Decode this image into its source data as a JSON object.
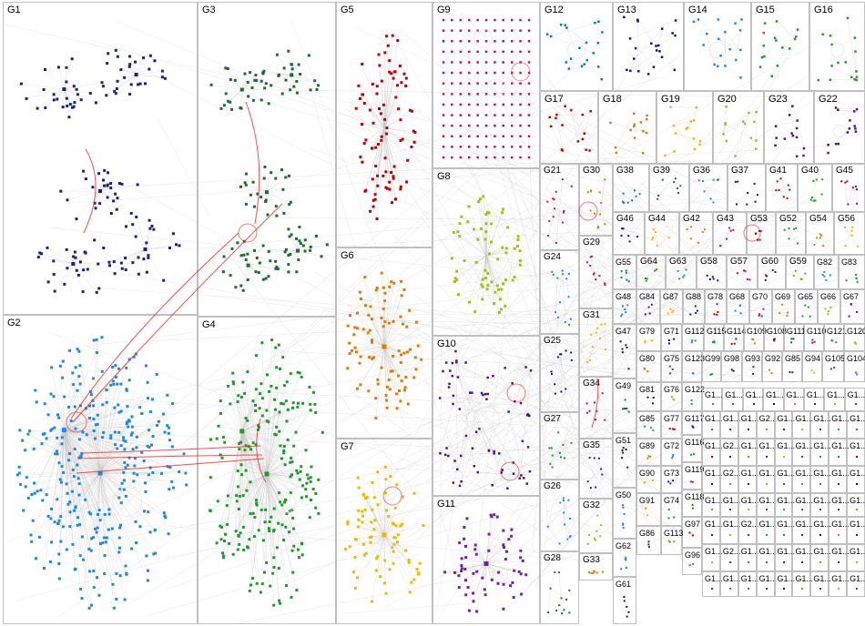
{
  "groups": [
    {
      "id": "G1",
      "label": "G1",
      "color": "#1a237e",
      "style": "clusters",
      "nodes": 140,
      "bridge": "#ff2020"
    },
    {
      "id": "G2",
      "label": "G2",
      "color": "#1e88e5",
      "style": "hub",
      "nodes": 320,
      "bridge": "#ff2020"
    },
    {
      "id": "G3",
      "label": "G3",
      "color": "#1b6e2e",
      "style": "clusters",
      "nodes": 130,
      "bridge": "#ff2020"
    },
    {
      "id": "G4",
      "label": "G4",
      "color": "#1f9a2a",
      "style": "hub",
      "nodes": 230,
      "bridge": "#ff2020"
    },
    {
      "id": "G5",
      "label": "G5",
      "color": "#c00000",
      "style": "ellipse",
      "nodes": 90
    },
    {
      "id": "G6",
      "label": "G6",
      "color": "#e67a00",
      "style": "hub",
      "nodes": 90
    },
    {
      "id": "G7",
      "label": "G7",
      "color": "#f2b800",
      "style": "hub",
      "nodes": 80
    },
    {
      "id": "G8",
      "label": "G8",
      "color": "#9dc21a",
      "style": "ellipse",
      "nodes": 70
    },
    {
      "id": "G9",
      "label": "G9",
      "color": "#c0184a",
      "style": "grid",
      "nodes": 150
    },
    {
      "id": "G10",
      "label": "G10",
      "color": "#4a148c",
      "style": "scatter",
      "nodes": 70
    },
    {
      "id": "G11",
      "label": "G11",
      "color": "#7b1fa2",
      "style": "hub",
      "nodes": 60
    },
    {
      "id": "G12",
      "label": "G12",
      "color": "#00897b",
      "style": "scatter",
      "nodes": 20
    },
    {
      "id": "G13",
      "label": "G13",
      "color": "#0d1b6e",
      "style": "scatter",
      "nodes": 22
    },
    {
      "id": "G14",
      "label": "G14",
      "color": "#1e88e5",
      "style": "scatter",
      "nodes": 18
    },
    {
      "id": "G15",
      "label": "G15",
      "color": "#1f9a2a",
      "style": "scatter",
      "nodes": 16
    },
    {
      "id": "G16",
      "label": "G16",
      "color": "#1f9a2a",
      "style": "scatter",
      "nodes": 16
    },
    {
      "id": "G17",
      "label": "G17",
      "color": "#c00000",
      "style": "scatter",
      "nodes": 16
    },
    {
      "id": "G18",
      "label": "G18",
      "color": "#e67a00",
      "style": "scatter",
      "nodes": 14
    },
    {
      "id": "G19",
      "label": "G19",
      "color": "#f2b800",
      "style": "scatter",
      "nodes": 14
    },
    {
      "id": "G20",
      "label": "G20",
      "color": "#9dc21a",
      "style": "scatter",
      "nodes": 14
    },
    {
      "id": "G23",
      "label": "G23",
      "color": "#4a148c",
      "style": "scatter",
      "nodes": 14
    },
    {
      "id": "G22",
      "label": "G22",
      "color": "#4a148c",
      "style": "scatter",
      "nodes": 14
    },
    {
      "id": "G21",
      "label": "G21",
      "color": "#c0184a",
      "style": "scatter",
      "nodes": 14
    },
    {
      "id": "G30",
      "label": "G30",
      "color": "#e67a00",
      "style": "scatter",
      "nodes": 12
    },
    {
      "id": "G38",
      "label": "G38",
      "color": "#00897b",
      "style": "scatter",
      "nodes": 8
    },
    {
      "id": "G39",
      "label": "G39",
      "color": "#1b6e2e",
      "style": "scatter",
      "nodes": 8
    },
    {
      "id": "G36",
      "label": "G36",
      "color": "#1e88e5",
      "style": "scatter",
      "nodes": 8
    },
    {
      "id": "G37",
      "label": "G37",
      "color": "#0d1b6e",
      "style": "scatter",
      "nodes": 8
    },
    {
      "id": "G41",
      "label": "G41",
      "color": "#c00000",
      "style": "scatter",
      "nodes": 8
    },
    {
      "id": "G40",
      "label": "G40",
      "color": "#1f9a2a",
      "style": "scatter",
      "nodes": 8
    },
    {
      "id": "G45",
      "label": "G45",
      "color": "#a0005a",
      "style": "scatter",
      "nodes": 8
    },
    {
      "id": "G24",
      "label": "G24",
      "color": "#1e88e5",
      "style": "scatter",
      "nodes": 14
    },
    {
      "id": "G29",
      "label": "G29",
      "color": "#c0184a",
      "style": "scatter",
      "nodes": 10
    },
    {
      "id": "G46",
      "label": "G46",
      "color": "#0d1b6e",
      "style": "scatter",
      "nodes": 6
    },
    {
      "id": "G44",
      "label": "G44",
      "color": "#f2b800",
      "style": "scatter",
      "nodes": 6
    },
    {
      "id": "G42",
      "label": "G42",
      "color": "#e67a00",
      "style": "scatter",
      "nodes": 6
    },
    {
      "id": "G43",
      "label": "G43",
      "color": "#c0184a",
      "style": "scatter",
      "nodes": 6
    },
    {
      "id": "G53",
      "label": "G53",
      "color": "#c00000",
      "style": "scatter",
      "nodes": 6
    },
    {
      "id": "G52",
      "label": "G52",
      "color": "#1f9a2a",
      "style": "scatter",
      "nodes": 6
    },
    {
      "id": "G54",
      "label": "G54",
      "color": "#e67a00",
      "style": "scatter",
      "nodes": 6
    },
    {
      "id": "G56",
      "label": "G56",
      "color": "#f2b800",
      "style": "scatter",
      "nodes": 6
    },
    {
      "id": "G55",
      "label": "G55",
      "color": "#00897b",
      "style": "scatter",
      "nodes": 6
    },
    {
      "id": "G64",
      "label": "G64",
      "color": "#1f9a2a",
      "style": "scatter",
      "nodes": 5
    },
    {
      "id": "G63",
      "label": "G63",
      "color": "#1e88e5",
      "style": "scatter",
      "nodes": 5
    },
    {
      "id": "G58",
      "label": "G58",
      "color": "#0d1b6e",
      "style": "scatter",
      "nodes": 5
    },
    {
      "id": "G57",
      "label": "G57",
      "color": "#c0184a",
      "style": "scatter",
      "nodes": 5
    },
    {
      "id": "G60",
      "label": "G60",
      "color": "#4a148c",
      "style": "scatter",
      "nodes": 5
    },
    {
      "id": "G59",
      "label": "G59",
      "color": "#e67a00",
      "style": "scatter",
      "nodes": 5
    },
    {
      "id": "G82",
      "label": "G82",
      "color": "#1e88e5",
      "style": "scatter",
      "nodes": 5
    },
    {
      "id": "G83",
      "label": "G83",
      "color": "#1f9a2a",
      "style": "scatter",
      "nodes": 5
    },
    {
      "id": "G31",
      "label": "G31",
      "color": "#f2b800",
      "style": "scatter",
      "nodes": 10
    },
    {
      "id": "G48",
      "label": "G48",
      "color": "#1e88e5",
      "style": "scatter",
      "nodes": 6
    },
    {
      "id": "G84",
      "label": "G84",
      "color": "#4a148c",
      "style": "scatter",
      "nodes": 4
    },
    {
      "id": "G87",
      "label": "G87",
      "color": "#f2b800",
      "style": "scatter",
      "nodes": 4
    },
    {
      "id": "G88",
      "label": "G88",
      "color": "#0d1b6e",
      "style": "scatter",
      "nodes": 4
    },
    {
      "id": "G78",
      "label": "G78",
      "color": "#c00000",
      "style": "scatter",
      "nodes": 4
    },
    {
      "id": "G68",
      "label": "G68",
      "color": "#1e88e5",
      "style": "scatter",
      "nodes": 4
    },
    {
      "id": "G70",
      "label": "G70",
      "color": "#c0184a",
      "style": "scatter",
      "nodes": 4
    },
    {
      "id": "G69",
      "label": "G69",
      "color": "#e67a00",
      "style": "scatter",
      "nodes": 4
    },
    {
      "id": "G65",
      "label": "G65",
      "color": "#1f9a2a",
      "style": "scatter",
      "nodes": 4
    },
    {
      "id": "G66",
      "label": "G66",
      "color": "#9dc21a",
      "style": "scatter",
      "nodes": 4
    },
    {
      "id": "G67",
      "label": "G67",
      "color": "#a0005a",
      "style": "scatter",
      "nodes": 4
    },
    {
      "id": "G25",
      "label": "G25",
      "color": "#0d1b6e",
      "style": "scatter",
      "nodes": 12
    },
    {
      "id": "G47",
      "label": "G47",
      "color": "#0d1b6e",
      "style": "scatter",
      "nodes": 6
    },
    {
      "id": "G79",
      "label": "G79",
      "color": "#f2b800",
      "style": "scatter",
      "nodes": 3
    },
    {
      "id": "G71",
      "label": "G71",
      "color": "#0d1b6e",
      "style": "scatter",
      "nodes": 3
    },
    {
      "id": "G112",
      "label": "G112",
      "color": "#1e88e5",
      "style": "scatter",
      "nodes": 3
    },
    {
      "id": "G115",
      "label": "G115",
      "color": "#1f9a2a",
      "style": "scatter",
      "nodes": 3
    },
    {
      "id": "G114",
      "label": "G114",
      "color": "#c00000",
      "style": "scatter",
      "nodes": 3
    },
    {
      "id": "G109",
      "label": "G109",
      "color": "#e67a00",
      "style": "scatter",
      "nodes": 3
    },
    {
      "id": "G108",
      "label": "G108",
      "color": "#4a148c",
      "style": "scatter",
      "nodes": 3
    },
    {
      "id": "G111",
      "label": "G111",
      "color": "#1b6e2e",
      "style": "scatter",
      "nodes": 3
    },
    {
      "id": "G110",
      "label": "G110",
      "color": "#c0184a",
      "style": "scatter",
      "nodes": 3
    },
    {
      "id": "G121",
      "label": "G121",
      "color": "#1e88e5",
      "style": "scatter",
      "nodes": 3
    },
    {
      "id": "G120",
      "label": "G120",
      "color": "#9dc21a",
      "style": "scatter",
      "nodes": 3
    },
    {
      "id": "G34",
      "label": "G34",
      "color": "#c0184a",
      "style": "scatter",
      "nodes": 8
    },
    {
      "id": "G80",
      "label": "G80",
      "color": "#e67a00",
      "style": "scatter",
      "nodes": 3
    },
    {
      "id": "G75",
      "label": "G75",
      "color": "#c0184a",
      "style": "scatter",
      "nodes": 3
    },
    {
      "id": "G123",
      "label": "G123",
      "color": "#1e88e5",
      "style": "scatter",
      "nodes": 2
    },
    {
      "id": "G99",
      "label": "G99",
      "color": "#1f9a2a",
      "style": "scatter",
      "nodes": 2
    },
    {
      "id": "G98",
      "label": "G98",
      "color": "#0d1b6e",
      "style": "scatter",
      "nodes": 2
    },
    {
      "id": "G93",
      "label": "G93",
      "color": "#c00000",
      "style": "scatter",
      "nodes": 2
    },
    {
      "id": "G92",
      "label": "G92",
      "color": "#e67a00",
      "style": "scatter",
      "nodes": 2
    },
    {
      "id": "G85",
      "label": "G85",
      "color": "#4a148c",
      "style": "scatter",
      "nodes": 2
    },
    {
      "id": "G94",
      "label": "G94",
      "color": "#f2b800",
      "style": "scatter",
      "nodes": 2
    },
    {
      "id": "G105",
      "label": "G105",
      "color": "#1b6e2e",
      "style": "scatter",
      "nodes": 2
    },
    {
      "id": "G104",
      "label": "G104",
      "color": "#1e88e5",
      "style": "scatter",
      "nodes": 2
    },
    {
      "id": "G27",
      "label": "G27",
      "color": "#1f9a2a",
      "style": "scatter",
      "nodes": 12
    },
    {
      "id": "G49",
      "label": "G49",
      "color": "#1b6e2e",
      "style": "scatter",
      "nodes": 6
    },
    {
      "id": "G81",
      "label": "G81",
      "color": "#0d1b6e",
      "style": "scatter",
      "nodes": 3
    },
    {
      "id": "G76",
      "label": "G76",
      "color": "#9dc21a",
      "style": "scatter",
      "nodes": 3
    },
    {
      "id": "G122",
      "label": "G122",
      "color": "#1e88e5",
      "style": "scatter",
      "nodes": 2
    },
    {
      "id": "G35",
      "label": "G35",
      "color": "#4a148c",
      "style": "scatter",
      "nodes": 8
    },
    {
      "id": "G117",
      "label": "G117",
      "color": "#0d1b6e",
      "style": "scatter",
      "nodes": 2
    },
    {
      "id": "G85b",
      "label": "G85",
      "color": "#1e88e5",
      "style": "scatter",
      "nodes": 3
    },
    {
      "id": "G77",
      "label": "G77",
      "color": "#c00000",
      "style": "scatter",
      "nodes": 3
    },
    {
      "id": "G51",
      "label": "G51",
      "color": "#0d1b6e",
      "style": "scatter",
      "nodes": 6
    },
    {
      "id": "G116",
      "label": "G116",
      "color": "#1f9a2a",
      "style": "scatter",
      "nodes": 2
    },
    {
      "id": "G89",
      "label": "G89",
      "color": "#e67a00",
      "style": "scatter",
      "nodes": 3
    },
    {
      "id": "G72",
      "label": "G72",
      "color": "#1e88e5",
      "style": "scatter",
      "nodes": 3
    },
    {
      "id": "G26",
      "label": "G26",
      "color": "#1e88e5",
      "style": "scatter",
      "nodes": 12
    },
    {
      "id": "G32",
      "label": "G32",
      "color": "#9dc21a",
      "style": "scatter",
      "nodes": 8
    },
    {
      "id": "G50",
      "label": "G50",
      "color": "#1e88e5",
      "style": "scatter",
      "nodes": 6
    },
    {
      "id": "G90",
      "label": "G90",
      "color": "#f2b800",
      "style": "scatter",
      "nodes": 3
    },
    {
      "id": "G73",
      "label": "G73",
      "color": "#4a148c",
      "style": "scatter",
      "nodes": 3
    },
    {
      "id": "G119",
      "label": "G119",
      "color": "#c0184a",
      "style": "scatter",
      "nodes": 2
    },
    {
      "id": "G118",
      "label": "G118",
      "color": "#1b6e2e",
      "style": "scatter",
      "nodes": 2
    },
    {
      "id": "G28",
      "label": "G28",
      "color": "#1b6e2e",
      "style": "scatter",
      "nodes": 12
    },
    {
      "id": "G33",
      "label": "G33",
      "color": "#e67a00",
      "style": "scatter",
      "nodes": 8
    },
    {
      "id": "G62",
      "label": "G62",
      "color": "#1e88e5",
      "style": "scatter",
      "nodes": 5
    },
    {
      "id": "G91",
      "label": "G91",
      "color": "#f2b800",
      "style": "scatter",
      "nodes": 3
    },
    {
      "id": "G74",
      "label": "G74",
      "color": "#1f9a2a",
      "style": "scatter",
      "nodes": 3
    },
    {
      "id": "G97",
      "label": "G97",
      "color": "#c00000",
      "style": "scatter",
      "nodes": 2
    },
    {
      "id": "G61",
      "label": "G61",
      "color": "#0d1b6e",
      "style": "scatter",
      "nodes": 5
    },
    {
      "id": "G86",
      "label": "G86",
      "color": "#4a148c",
      "style": "scatter",
      "nodes": 3
    },
    {
      "id": "G113",
      "label": "G113",
      "color": "#e67a00",
      "style": "scatter",
      "nodes": 3
    },
    {
      "id": "G96",
      "label": "G96",
      "color": "#1e88e5",
      "style": "scatter",
      "nodes": 2
    }
  ],
  "small_group_label": "G1...",
  "small_group_colors": [
    "#1e88e5",
    "#1f9a2a",
    "#c00000",
    "#0d1b6e",
    "#e67a00",
    "#4a148c",
    "#9dc21a",
    "#c0184a"
  ],
  "small_group_label_rows": [
    [
      "G1",
      "G1",
      "G1",
      "G1",
      "G1",
      "G1",
      "G1",
      "G1"
    ],
    [
      "G1",
      "G1",
      "G1",
      "G2",
      "G1",
      "G1",
      "G1",
      "G1",
      "G1"
    ],
    [
      "G1",
      "G2",
      "G1",
      "G1",
      "G1",
      "G1",
      "G1",
      "G1",
      "G1"
    ],
    [
      "G1",
      "G2",
      "G1",
      "G1",
      "G1",
      "G1",
      "G1",
      "G1",
      "G1"
    ],
    [
      "G1",
      "G1",
      "G1",
      "G1",
      "G1",
      "G1",
      "G1",
      "G1",
      "G1"
    ],
    [
      "G1",
      "G1",
      "G2",
      "G1",
      "G1",
      "G1",
      "G1",
      "G1",
      "G1"
    ],
    [
      "G1",
      "G2",
      "G1",
      "G1",
      "G1",
      "G1",
      "G1",
      "G1",
      "G1"
    ],
    [
      "G1",
      "G1",
      "G1",
      "G1",
      "G1",
      "G1",
      "G1",
      "G1",
      "G1"
    ]
  ],
  "colors": {
    "edge": "#c8c8c8",
    "cross_edge": "#ff2020",
    "border": "#c0c0c0",
    "background": "#ffffff"
  }
}
